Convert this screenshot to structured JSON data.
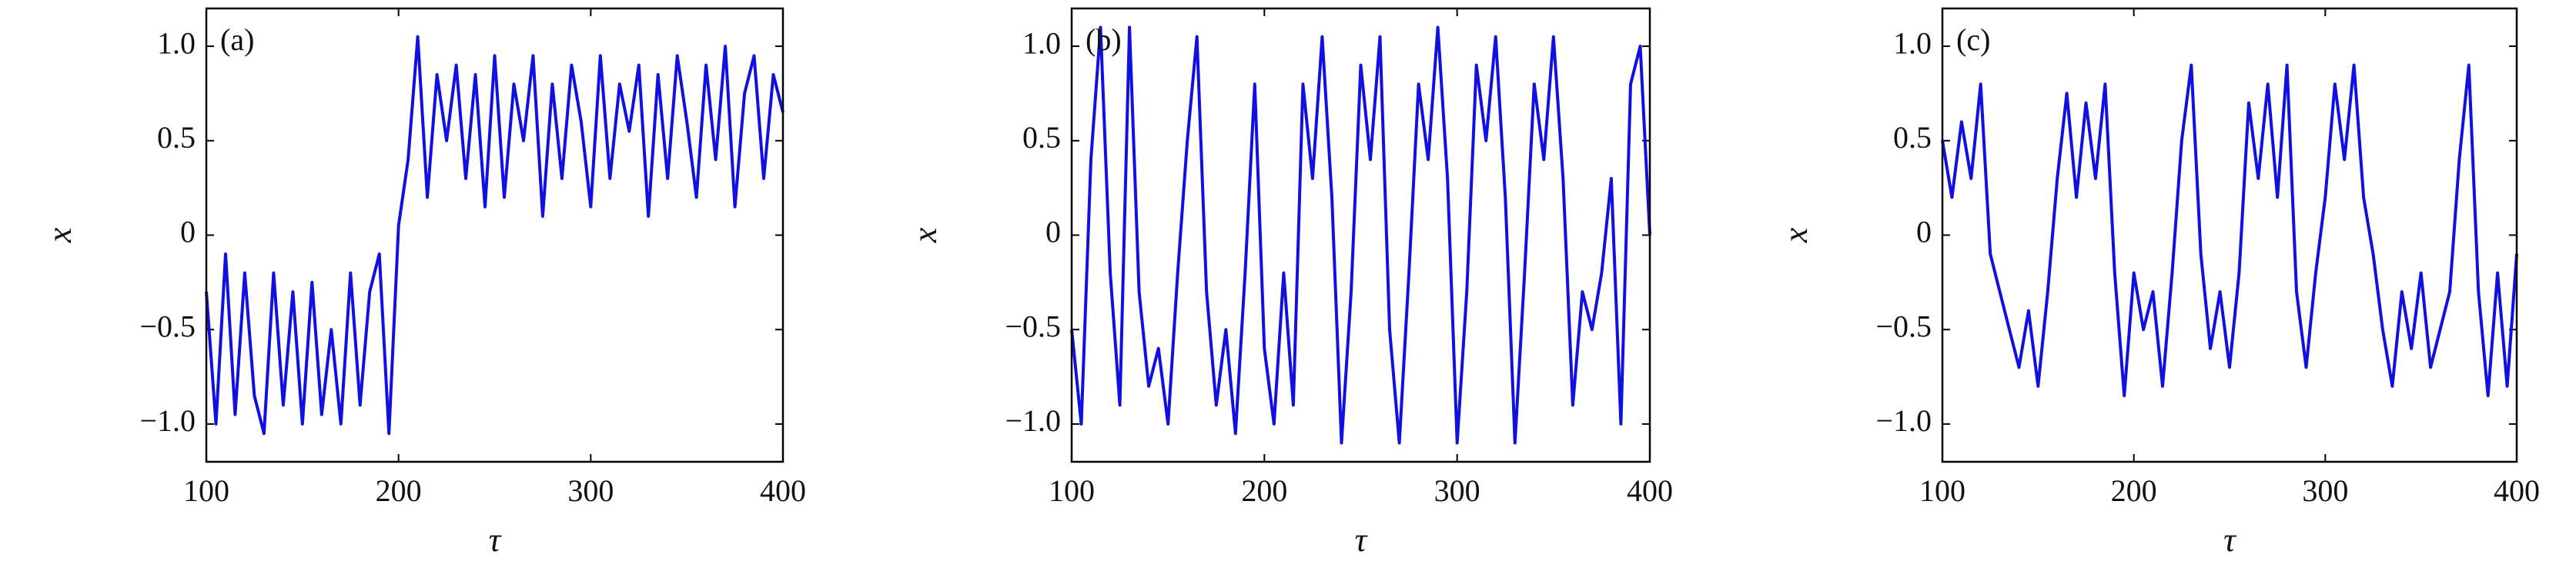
{
  "chart_data": [
    {
      "type": "line",
      "annotation": "(a)",
      "xlabel": "τ",
      "ylabel": "x",
      "color": "#1010e0",
      "x": [
        100,
        105,
        110,
        115,
        120,
        125,
        130,
        135,
        140,
        145,
        150,
        155,
        160,
        165,
        170,
        175,
        180,
        185,
        190,
        195,
        200,
        205,
        210,
        215,
        220,
        225,
        230,
        235,
        240,
        245,
        250,
        255,
        260,
        265,
        270,
        275,
        280,
        285,
        290,
        295,
        300,
        305,
        310,
        315,
        320,
        325,
        330,
        335,
        340,
        345,
        350,
        355,
        360,
        365,
        370,
        375,
        380,
        385,
        390,
        395,
        400
      ],
      "values": [
        -0.3,
        -1.0,
        -0.1,
        -0.95,
        -0.2,
        -0.85,
        -1.05,
        -0.2,
        -0.9,
        -0.3,
        -1.0,
        -0.25,
        -0.95,
        -0.5,
        -1.0,
        -0.2,
        -0.9,
        -0.3,
        -0.1,
        -1.05,
        0.05,
        0.4,
        1.05,
        0.2,
        0.85,
        0.5,
        0.9,
        0.3,
        0.85,
        0.15,
        0.95,
        0.2,
        0.8,
        0.5,
        0.95,
        0.1,
        0.8,
        0.3,
        0.9,
        0.6,
        0.15,
        0.95,
        0.3,
        0.8,
        0.55,
        0.9,
        0.1,
        0.85,
        0.3,
        0.95,
        0.6,
        0.2,
        0.9,
        0.4,
        1.0,
        0.15,
        0.75,
        0.95,
        0.3,
        0.85,
        0.65
      ],
      "xlim": [
        100,
        400
      ],
      "ylim": [
        -1.2,
        1.2
      ],
      "xticks": [
        100,
        200,
        300,
        400
      ],
      "yticks": [
        {
          "value": -1.0,
          "label": "−1.0"
        },
        {
          "value": -0.5,
          "label": "−0.5"
        },
        0,
        {
          "value": 0.5,
          "label": "0.5"
        },
        {
          "value": 1.0,
          "label": "1.0"
        }
      ]
    },
    {
      "type": "line",
      "annotation": "(b)",
      "xlabel": "τ",
      "ylabel": "x",
      "color": "#1010e0",
      "x": [
        100,
        105,
        110,
        115,
        120,
        125,
        130,
        135,
        140,
        145,
        150,
        155,
        160,
        165,
        170,
        175,
        180,
        185,
        190,
        195,
        200,
        205,
        210,
        215,
        220,
        225,
        230,
        235,
        240,
        245,
        250,
        255,
        260,
        265,
        270,
        275,
        280,
        285,
        290,
        295,
        300,
        305,
        310,
        315,
        320,
        325,
        330,
        335,
        340,
        345,
        350,
        355,
        360,
        365,
        370,
        375,
        380,
        385,
        390,
        395,
        400
      ],
      "values": [
        -0.5,
        -1.0,
        0.4,
        1.1,
        -0.2,
        -0.9,
        1.1,
        -0.3,
        -0.8,
        -0.6,
        -1.0,
        -0.2,
        0.5,
        1.05,
        -0.3,
        -0.9,
        -0.5,
        -1.05,
        -0.2,
        0.8,
        -0.6,
        -1.0,
        -0.2,
        -0.9,
        0.8,
        0.3,
        1.05,
        0.2,
        -1.1,
        -0.3,
        0.9,
        0.4,
        1.05,
        -0.5,
        -1.1,
        -0.2,
        0.8,
        0.4,
        1.1,
        0.3,
        -1.1,
        -0.3,
        0.9,
        0.5,
        1.05,
        0.2,
        -1.1,
        -0.2,
        0.8,
        0.4,
        1.05,
        0.3,
        -0.9,
        -0.3,
        -0.5,
        -0.2,
        0.3,
        -1.0,
        0.8,
        1.0,
        0.0
      ],
      "xlim": [
        100,
        400
      ],
      "ylim": [
        -1.2,
        1.2
      ],
      "xticks": [
        100,
        200,
        300,
        400
      ],
      "yticks": [
        {
          "value": -1.0,
          "label": "−1.0"
        },
        {
          "value": -0.5,
          "label": "−0.5"
        },
        0,
        {
          "value": 0.5,
          "label": "0.5"
        },
        {
          "value": 1.0,
          "label": "1.0"
        }
      ]
    },
    {
      "type": "line",
      "annotation": "(c)",
      "xlabel": "τ",
      "ylabel": "x",
      "color": "#1010e0",
      "x": [
        100,
        105,
        110,
        115,
        120,
        125,
        130,
        135,
        140,
        145,
        150,
        155,
        160,
        165,
        170,
        175,
        180,
        185,
        190,
        195,
        200,
        205,
        210,
        215,
        220,
        225,
        230,
        235,
        240,
        245,
        250,
        255,
        260,
        265,
        270,
        275,
        280,
        285,
        290,
        295,
        300,
        305,
        310,
        315,
        320,
        325,
        330,
        335,
        340,
        345,
        350,
        355,
        360,
        365,
        370,
        375,
        380,
        385,
        390,
        395,
        400
      ],
      "values": [
        0.5,
        0.2,
        0.6,
        0.3,
        0.8,
        -0.1,
        -0.3,
        -0.5,
        -0.7,
        -0.4,
        -0.8,
        -0.3,
        0.3,
        0.75,
        0.2,
        0.7,
        0.3,
        0.8,
        -0.2,
        -0.85,
        -0.2,
        -0.5,
        -0.3,
        -0.8,
        -0.2,
        0.5,
        0.9,
        -0.1,
        -0.6,
        -0.3,
        -0.7,
        -0.2,
        0.7,
        0.3,
        0.8,
        0.2,
        0.9,
        -0.3,
        -0.7,
        -0.2,
        0.2,
        0.8,
        0.4,
        0.9,
        0.2,
        -0.1,
        -0.5,
        -0.8,
        -0.3,
        -0.6,
        -0.2,
        -0.7,
        -0.5,
        -0.3,
        0.4,
        0.9,
        -0.3,
        -0.85,
        -0.2,
        -0.8,
        -0.1
      ],
      "xlim": [
        100,
        400
      ],
      "ylim": [
        -1.2,
        1.2
      ],
      "xticks": [
        100,
        200,
        300,
        400
      ],
      "yticks": [
        {
          "value": -1.0,
          "label": "−1.0"
        },
        {
          "value": -0.5,
          "label": "−0.5"
        },
        0,
        {
          "value": 0.5,
          "label": "0.5"
        },
        {
          "value": 1.0,
          "label": "1.0"
        }
      ]
    }
  ]
}
